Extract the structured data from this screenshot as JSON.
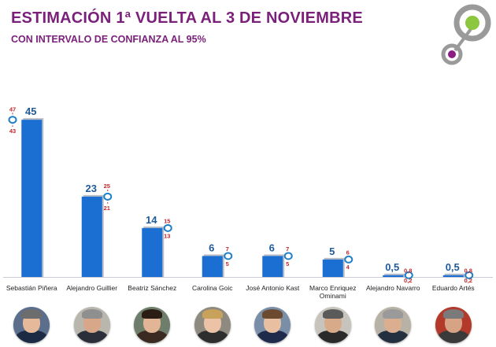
{
  "header": {
    "title": "ESTIMACIÓN 1ª VUELTA AL 3 DE NOVIEMBRE",
    "subtitle": "CON INTERVALO DE CONFIANZA AL 95%"
  },
  "colors": {
    "title": "#7a1f7a",
    "bar": "#1b6fd2",
    "bar_shadow": "#b9bec6",
    "value_label": "#1f5a99",
    "interval_line": "#c0282d",
    "interval_label": "#c0282d",
    "interval_marker": "#1f7fc8",
    "logo_green": "#8dc63f",
    "logo_purple": "#8c1d82",
    "logo_gray": "#9a9a9a"
  },
  "chart_data": {
    "type": "bar",
    "title": "ESTIMACIÓN 1ª VUELTA AL 3 DE NOVIEMBRE",
    "subtitle": "CON INTERVALO DE CONFIANZA AL 95%",
    "categories": [
      "Sebastián Piñera",
      "Alejandro Guillier",
      "Beatriz Sánchez",
      "Carolina Goic",
      "José Antonio Kast",
      "Marco Enriquez Ominami",
      "Alejandro Navarro",
      "Eduardo Artés"
    ],
    "values": [
      45,
      23,
      14,
      6,
      6,
      5,
      0.5,
      0.5
    ],
    "value_labels": [
      "45",
      "23",
      "14",
      "6",
      "6",
      "5",
      "0,5",
      "0,5"
    ],
    "interval_high": [
      47,
      25,
      15,
      7,
      7,
      6,
      0.8,
      0.8
    ],
    "interval_low": [
      43,
      21,
      13,
      5,
      5,
      4,
      0.2,
      0.2
    ],
    "interval_high_labels": [
      "47",
      "25",
      "15",
      "7",
      "7",
      "6",
      "0,8",
      "0,8"
    ],
    "interval_low_labels": [
      "43",
      "21",
      "13",
      "5",
      "5",
      "4",
      "0,2",
      "0,2"
    ],
    "ylim": [
      0,
      50
    ],
    "grid": false,
    "legend": "none"
  },
  "candidates": [
    {
      "name": "Sebastián Piñera",
      "icon": "candidate-photo"
    },
    {
      "name": "Alejandro Guillier",
      "icon": "candidate-photo"
    },
    {
      "name": "Beatriz Sánchez",
      "icon": "candidate-photo"
    },
    {
      "name": "Carolina Goic",
      "icon": "candidate-photo"
    },
    {
      "name": "José Antonio Kast",
      "icon": "candidate-photo"
    },
    {
      "name": "Marco Enriquez Ominami",
      "icon": "candidate-photo"
    },
    {
      "name": "Alejandro Navarro",
      "icon": "candidate-photo"
    },
    {
      "name": "Eduardo Artés",
      "icon": "candidate-photo"
    }
  ]
}
